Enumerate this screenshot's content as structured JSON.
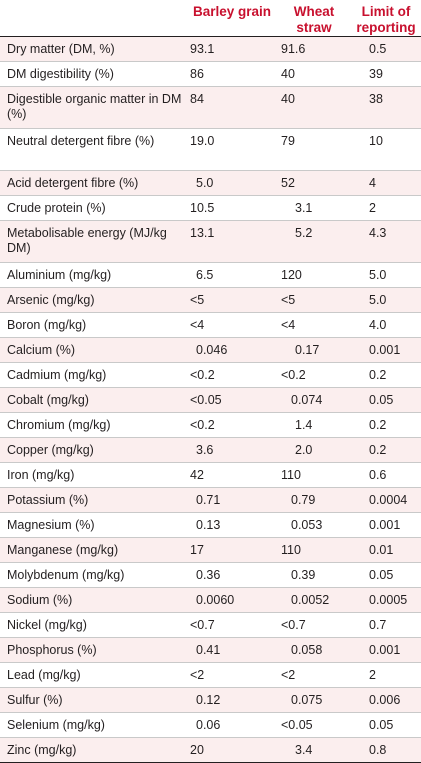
{
  "table": {
    "headers": {
      "parameter": "",
      "barley": "Barley grain",
      "wheat": "Wheat straw",
      "limit": "Limit of reporting"
    },
    "rows": [
      {
        "parameter": "Dry matter (DM, %)",
        "barley": "93.1",
        "wheat": "91.6",
        "limit": "0.5"
      },
      {
        "parameter": "DM digestibility (%)",
        "barley": "86",
        "wheat": "40",
        "limit": "39"
      },
      {
        "parameter": "Digestible organic matter in DM (%)",
        "barley": "84",
        "wheat": "40",
        "limit": "38"
      },
      {
        "parameter": "Neutral detergent fibre (%)",
        "barley": "19.0",
        "wheat": "79",
        "limit": "10"
      },
      {
        "parameter": "Acid detergent fibre (%)",
        "barley": "5.0",
        "wheat": "52",
        "limit": "4"
      },
      {
        "parameter": "Crude protein (%)",
        "barley": "10.5",
        "wheat": "3.1",
        "limit": "2"
      },
      {
        "parameter": "Metabolisable energy (MJ/kg DM)",
        "barley": "13.1",
        "wheat": "5.2",
        "limit": "4.3"
      },
      {
        "parameter": "Aluminium (mg/kg)",
        "barley": "6.5",
        "wheat": "120",
        "limit": "5.0"
      },
      {
        "parameter": "Arsenic (mg/kg)",
        "barley": "<5",
        "wheat": "<5",
        "limit": "5.0"
      },
      {
        "parameter": "Boron (mg/kg)",
        "barley": "<4",
        "wheat": "<4",
        "limit": "4.0"
      },
      {
        "parameter": "Calcium (%)",
        "barley": "0.046",
        "wheat": "0.17",
        "limit": "0.001"
      },
      {
        "parameter": "Cadmium (mg/kg)",
        "barley": "<0.2",
        "wheat": "<0.2",
        "limit": "0.2"
      },
      {
        "parameter": "Cobalt (mg/kg)",
        "barley": "<0.05",
        "wheat": "0.074",
        "limit": "0.05"
      },
      {
        "parameter": "Chromium (mg/kg)",
        "barley": "<0.2",
        "wheat": "1.4",
        "limit": "0.2"
      },
      {
        "parameter": "Copper (mg/kg)",
        "barley": "3.6",
        "wheat": "2.0",
        "limit": "0.2"
      },
      {
        "parameter": "Iron (mg/kg)",
        "barley": "42",
        "wheat": "110",
        "limit": "0.6"
      },
      {
        "parameter": "Potassium (%)",
        "barley": "0.71",
        "wheat": "0.79",
        "limit": "0.0004"
      },
      {
        "parameter": "Magnesium (%)",
        "barley": "0.13",
        "wheat": "0.053",
        "limit": "0.001"
      },
      {
        "parameter": "Manganese (mg/kg)",
        "barley": "17",
        "wheat": "110",
        "limit": "0.01"
      },
      {
        "parameter": "Molybdenum (mg/kg)",
        "barley": "0.36",
        "wheat": "0.39",
        "limit": "0.05"
      },
      {
        "parameter": "Sodium (%)",
        "barley": "0.0060",
        "wheat": "0.0052",
        "limit": "0.0005"
      },
      {
        "parameter": "Nickel (mg/kg)",
        "barley": "<0.7",
        "wheat": "<0.7",
        "limit": "0.7"
      },
      {
        "parameter": "Phosphorus (%)",
        "barley": "0.41",
        "wheat": "0.058",
        "limit": "0.001"
      },
      {
        "parameter": "Lead (mg/kg)",
        "barley": "<2",
        "wheat": "<2",
        "limit": "2"
      },
      {
        "parameter": "Sulfur (%)",
        "barley": "0.12",
        "wheat": "0.075",
        "limit": "0.006"
      },
      {
        "parameter": "Selenium (mg/kg)",
        "barley": "0.06",
        "wheat": "<0.05",
        "limit": "0.05"
      },
      {
        "parameter": "Zinc (mg/kg)",
        "barley": "20",
        "wheat": "3.4",
        "limit": "0.8"
      }
    ]
  },
  "colors": {
    "header_text": "#c8102e",
    "stripe": "#fbeeee",
    "text": "#231f20"
  }
}
